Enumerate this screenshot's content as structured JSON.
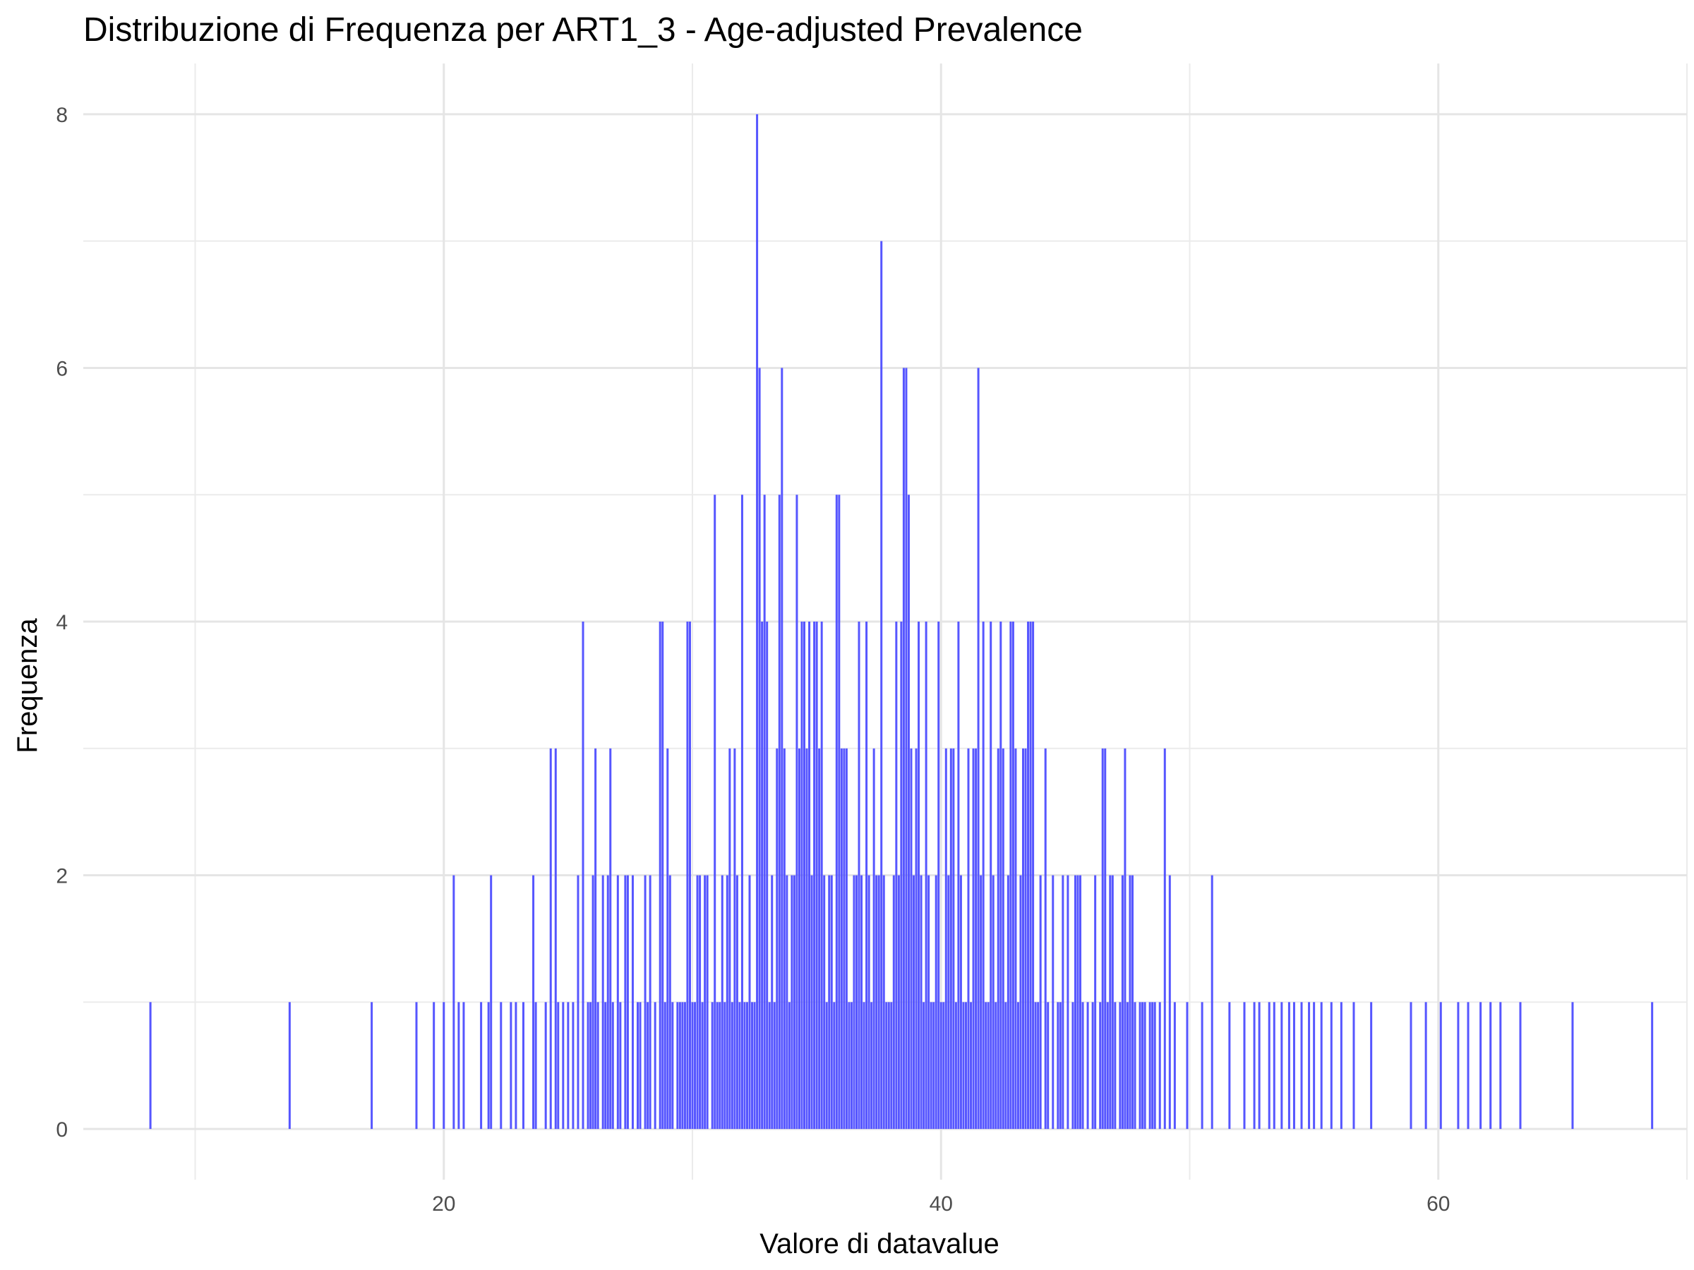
{
  "chart_data": {
    "type": "bar",
    "title": "Distribuzione di Frequenza per ART1_3 - Age-adjusted Prevalence",
    "xlabel": "Valore di datavalue",
    "ylabel": "Frequenza",
    "xlim": [
      5.5,
      70
    ],
    "ylim": [
      -0.4,
      8.4
    ],
    "x_ticks": [
      20,
      40,
      60
    ],
    "y_ticks": [
      0,
      2,
      4,
      6,
      8
    ],
    "grid": true,
    "bar_color": "#4d4dff",
    "bars": [
      [
        8.2,
        1
      ],
      [
        13.8,
        1
      ],
      [
        17.1,
        1
      ],
      [
        18.9,
        1
      ],
      [
        19.6,
        1
      ],
      [
        20.0,
        1
      ],
      [
        20.4,
        2
      ],
      [
        20.6,
        1
      ],
      [
        20.8,
        1
      ],
      [
        21.5,
        1
      ],
      [
        21.8,
        1
      ],
      [
        21.9,
        2
      ],
      [
        22.3,
        1
      ],
      [
        22.7,
        1
      ],
      [
        22.9,
        1
      ],
      [
        23.2,
        1
      ],
      [
        23.6,
        2
      ],
      [
        23.7,
        1
      ],
      [
        24.1,
        1
      ],
      [
        24.3,
        3
      ],
      [
        24.5,
        3
      ],
      [
        24.6,
        1
      ],
      [
        24.8,
        1
      ],
      [
        25.0,
        1
      ],
      [
        25.2,
        1
      ],
      [
        25.4,
        2
      ],
      [
        25.6,
        4
      ],
      [
        25.8,
        1
      ],
      [
        25.9,
        1
      ],
      [
        26.0,
        2
      ],
      [
        26.1,
        3
      ],
      [
        26.2,
        1
      ],
      [
        26.4,
        2
      ],
      [
        26.5,
        1
      ],
      [
        26.6,
        2
      ],
      [
        26.7,
        3
      ],
      [
        26.8,
        1
      ],
      [
        27.0,
        2
      ],
      [
        27.1,
        1
      ],
      [
        27.3,
        2
      ],
      [
        27.4,
        2
      ],
      [
        27.6,
        2
      ],
      [
        27.8,
        1
      ],
      [
        27.9,
        1
      ],
      [
        28.1,
        2
      ],
      [
        28.2,
        1
      ],
      [
        28.3,
        2
      ],
      [
        28.5,
        1
      ],
      [
        28.7,
        4
      ],
      [
        28.8,
        4
      ],
      [
        28.9,
        1
      ],
      [
        29.0,
        3
      ],
      [
        29.1,
        2
      ],
      [
        29.2,
        1
      ],
      [
        29.4,
        1
      ],
      [
        29.5,
        1
      ],
      [
        29.6,
        1
      ],
      [
        29.7,
        1
      ],
      [
        29.8,
        4
      ],
      [
        29.9,
        4
      ],
      [
        30.0,
        1
      ],
      [
        30.1,
        1
      ],
      [
        30.2,
        2
      ],
      [
        30.3,
        2
      ],
      [
        30.4,
        1
      ],
      [
        30.5,
        2
      ],
      [
        30.6,
        2
      ],
      [
        30.8,
        1
      ],
      [
        30.9,
        5
      ],
      [
        31.0,
        1
      ],
      [
        31.1,
        1
      ],
      [
        31.2,
        2
      ],
      [
        31.3,
        1
      ],
      [
        31.4,
        2
      ],
      [
        31.5,
        3
      ],
      [
        31.6,
        1
      ],
      [
        31.7,
        3
      ],
      [
        31.8,
        2
      ],
      [
        31.9,
        1
      ],
      [
        32.0,
        5
      ],
      [
        32.1,
        1
      ],
      [
        32.2,
        1
      ],
      [
        32.3,
        2
      ],
      [
        32.4,
        1
      ],
      [
        32.5,
        1
      ],
      [
        32.6,
        8
      ],
      [
        32.7,
        6
      ],
      [
        32.8,
        4
      ],
      [
        32.9,
        5
      ],
      [
        33.0,
        4
      ],
      [
        33.1,
        1
      ],
      [
        33.2,
        2
      ],
      [
        33.3,
        1
      ],
      [
        33.4,
        3
      ],
      [
        33.5,
        5
      ],
      [
        33.6,
        6
      ],
      [
        33.7,
        3
      ],
      [
        33.8,
        2
      ],
      [
        33.9,
        1
      ],
      [
        34.0,
        2
      ],
      [
        34.1,
        2
      ],
      [
        34.2,
        5
      ],
      [
        34.3,
        3
      ],
      [
        34.4,
        4
      ],
      [
        34.5,
        4
      ],
      [
        34.6,
        3
      ],
      [
        34.7,
        4
      ],
      [
        34.8,
        2
      ],
      [
        34.9,
        4
      ],
      [
        35.0,
        4
      ],
      [
        35.1,
        3
      ],
      [
        35.2,
        4
      ],
      [
        35.3,
        2
      ],
      [
        35.4,
        1
      ],
      [
        35.5,
        2
      ],
      [
        35.6,
        2
      ],
      [
        35.7,
        1
      ],
      [
        35.8,
        5
      ],
      [
        35.9,
        5
      ],
      [
        36.0,
        3
      ],
      [
        36.1,
        3
      ],
      [
        36.2,
        3
      ],
      [
        36.3,
        1
      ],
      [
        36.4,
        1
      ],
      [
        36.5,
        2
      ],
      [
        36.6,
        2
      ],
      [
        36.7,
        4
      ],
      [
        36.8,
        2
      ],
      [
        36.9,
        1
      ],
      [
        37.0,
        4
      ],
      [
        37.1,
        2
      ],
      [
        37.2,
        1
      ],
      [
        37.3,
        3
      ],
      [
        37.4,
        2
      ],
      [
        37.5,
        2
      ],
      [
        37.6,
        7
      ],
      [
        37.7,
        2
      ],
      [
        37.8,
        1
      ],
      [
        37.9,
        1
      ],
      [
        38.0,
        1
      ],
      [
        38.1,
        2
      ],
      [
        38.2,
        4
      ],
      [
        38.3,
        2
      ],
      [
        38.4,
        4
      ],
      [
        38.5,
        6
      ],
      [
        38.6,
        6
      ],
      [
        38.7,
        5
      ],
      [
        38.8,
        3
      ],
      [
        38.9,
        2
      ],
      [
        39.0,
        3
      ],
      [
        39.1,
        4
      ],
      [
        39.2,
        2
      ],
      [
        39.3,
        1
      ],
      [
        39.4,
        4
      ],
      [
        39.5,
        2
      ],
      [
        39.6,
        1
      ],
      [
        39.7,
        1
      ],
      [
        39.8,
        2
      ],
      [
        39.9,
        4
      ],
      [
        40.0,
        1
      ],
      [
        40.1,
        1
      ],
      [
        40.2,
        3
      ],
      [
        40.3,
        2
      ],
      [
        40.4,
        3
      ],
      [
        40.5,
        3
      ],
      [
        40.6,
        1
      ],
      [
        40.7,
        4
      ],
      [
        40.8,
        2
      ],
      [
        40.9,
        1
      ],
      [
        41.0,
        1
      ],
      [
        41.1,
        3
      ],
      [
        41.2,
        1
      ],
      [
        41.3,
        3
      ],
      [
        41.4,
        3
      ],
      [
        41.5,
        6
      ],
      [
        41.6,
        2
      ],
      [
        41.7,
        4
      ],
      [
        41.8,
        1
      ],
      [
        41.9,
        1
      ],
      [
        42.0,
        4
      ],
      [
        42.1,
        2
      ],
      [
        42.2,
        1
      ],
      [
        42.3,
        3
      ],
      [
        42.4,
        4
      ],
      [
        42.5,
        3
      ],
      [
        42.6,
        1
      ],
      [
        42.7,
        2
      ],
      [
        42.8,
        4
      ],
      [
        42.9,
        4
      ],
      [
        43.0,
        3
      ],
      [
        43.1,
        1
      ],
      [
        43.2,
        2
      ],
      [
        43.3,
        3
      ],
      [
        43.4,
        3
      ],
      [
        43.5,
        4
      ],
      [
        43.6,
        4
      ],
      [
        43.7,
        4
      ],
      [
        43.8,
        1
      ],
      [
        43.9,
        1
      ],
      [
        44.0,
        2
      ],
      [
        44.2,
        3
      ],
      [
        44.3,
        1
      ],
      [
        44.5,
        2
      ],
      [
        44.7,
        1
      ],
      [
        44.8,
        1
      ],
      [
        44.9,
        2
      ],
      [
        45.1,
        2
      ],
      [
        45.3,
        1
      ],
      [
        45.4,
        2
      ],
      [
        45.5,
        2
      ],
      [
        45.6,
        2
      ],
      [
        45.7,
        1
      ],
      [
        45.9,
        1
      ],
      [
        46.1,
        1
      ],
      [
        46.2,
        2
      ],
      [
        46.4,
        1
      ],
      [
        46.5,
        3
      ],
      [
        46.6,
        3
      ],
      [
        46.7,
        1
      ],
      [
        46.8,
        2
      ],
      [
        46.9,
        2
      ],
      [
        47.0,
        1
      ],
      [
        47.2,
        1
      ],
      [
        47.3,
        2
      ],
      [
        47.4,
        3
      ],
      [
        47.5,
        1
      ],
      [
        47.6,
        2
      ],
      [
        47.7,
        2
      ],
      [
        47.8,
        1
      ],
      [
        48.0,
        1
      ],
      [
        48.1,
        1
      ],
      [
        48.2,
        1
      ],
      [
        48.4,
        1
      ],
      [
        48.5,
        1
      ],
      [
        48.6,
        1
      ],
      [
        48.8,
        1
      ],
      [
        49.0,
        3
      ],
      [
        49.2,
        2
      ],
      [
        49.4,
        1
      ],
      [
        49.9,
        1
      ],
      [
        50.5,
        1
      ],
      [
        50.9,
        2
      ],
      [
        51.6,
        1
      ],
      [
        52.2,
        1
      ],
      [
        52.6,
        1
      ],
      [
        52.8,
        1
      ],
      [
        53.2,
        1
      ],
      [
        53.4,
        1
      ],
      [
        53.7,
        1
      ],
      [
        54.0,
        1
      ],
      [
        54.2,
        1
      ],
      [
        54.5,
        1
      ],
      [
        54.8,
        1
      ],
      [
        55.0,
        1
      ],
      [
        55.3,
        1
      ],
      [
        55.7,
        1
      ],
      [
        56.1,
        1
      ],
      [
        56.6,
        1
      ],
      [
        57.3,
        1
      ],
      [
        58.9,
        1
      ],
      [
        59.5,
        1
      ],
      [
        60.1,
        1
      ],
      [
        60.8,
        1
      ],
      [
        61.2,
        1
      ],
      [
        61.7,
        1
      ],
      [
        62.1,
        1
      ],
      [
        62.5,
        1
      ],
      [
        63.3,
        1
      ],
      [
        65.4,
        1
      ],
      [
        68.6,
        1
      ]
    ]
  }
}
